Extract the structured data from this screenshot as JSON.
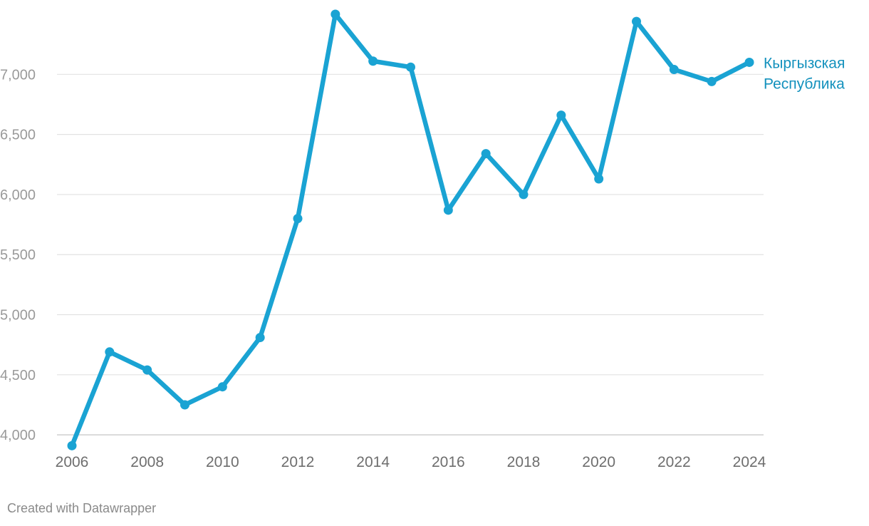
{
  "credit": "Created with Datawrapper",
  "colors": {
    "series": "#1aa3d3",
    "label": "#1391bd",
    "grid": "#e2e2e2",
    "axis": "#cfcfcf"
  },
  "chart_data": {
    "type": "line",
    "title": "",
    "xlabel": "",
    "ylabel": "",
    "x": [
      2006,
      2007,
      2008,
      2009,
      2010,
      2011,
      2012,
      2013,
      2014,
      2015,
      2016,
      2017,
      2018,
      2019,
      2020,
      2021,
      2022,
      2023,
      2024
    ],
    "series": [
      {
        "name": "Кыргызская Республика",
        "label_lines": [
          "Кыргызская",
          "Республика"
        ],
        "values": [
          3910,
          4690,
          4540,
          4250,
          4400,
          4810,
          5800,
          7500,
          7110,
          7060,
          5870,
          6340,
          6000,
          6660,
          6130,
          7440,
          7040,
          6940,
          7100
        ]
      }
    ],
    "ylim": [
      3900,
      7500
    ],
    "xlim": [
      2006,
      2024
    ],
    "y_ticks": [
      4000,
      4500,
      5000,
      5500,
      6000,
      6500,
      7000
    ],
    "y_tick_labels": [
      "4,000",
      "4,500",
      "5,000",
      "5,500",
      "6,000",
      "6,500",
      "7,000"
    ],
    "x_ticks": [
      2006,
      2008,
      2010,
      2012,
      2014,
      2016,
      2018,
      2020,
      2022,
      2024
    ],
    "x_tick_labels": [
      "2006",
      "2008",
      "2010",
      "2012",
      "2014",
      "2016",
      "2018",
      "2020",
      "2022",
      "2024"
    ],
    "grid": true,
    "legend": "direct label at line end"
  }
}
